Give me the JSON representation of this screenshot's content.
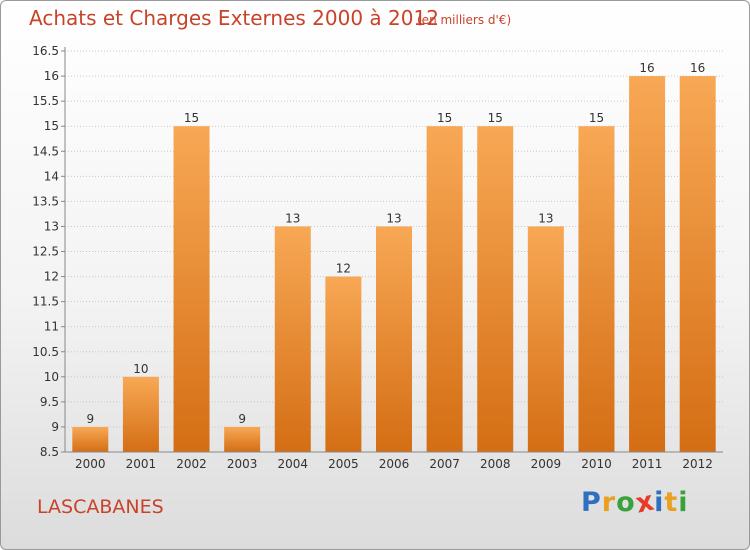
{
  "title": "Achats et Charges Externes 2000 à 2012",
  "unit_note": "(en milliers d'€)",
  "commune": "LASCABANES",
  "logo": {
    "letters": [
      "P",
      "r",
      "o",
      "x",
      "i",
      "t",
      "i"
    ],
    "colors": [
      "#2e6fbf",
      "#e8a020",
      "#3aa23a",
      "#e83a2a",
      "#2e6fbf",
      "#e8a020",
      "#3aa23a"
    ]
  },
  "colors": {
    "bar_top": "#f8a855",
    "bar_bottom": "#d46e14",
    "text_accent": "#c8432a",
    "grid": "#c8c8c8"
  },
  "chart_data": {
    "type": "bar",
    "title": "Achats et Charges Externes 2000 à 2012",
    "categories": [
      "2000",
      "2001",
      "2002",
      "2003",
      "2004",
      "2005",
      "2006",
      "2007",
      "2008",
      "2009",
      "2010",
      "2011",
      "2012"
    ],
    "values": [
      9,
      10,
      15,
      9,
      13,
      12,
      13,
      15,
      15,
      13,
      15,
      16,
      16
    ],
    "ylim": [
      8.5,
      16.5
    ],
    "yticks": [
      "8.5",
      "9",
      "9.5",
      "10",
      "10.5",
      "11",
      "11.5",
      "12",
      "12.5",
      "13",
      "13.5",
      "14",
      "14.5",
      "15",
      "15.5",
      "16",
      "16.5"
    ],
    "grid": true,
    "xlabel": "",
    "ylabel": ""
  }
}
